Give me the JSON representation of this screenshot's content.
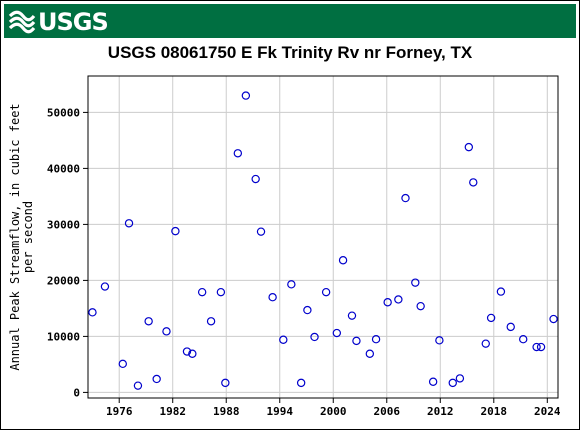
{
  "header": {
    "logo_text": "USGS",
    "colors": {
      "banner": "#006f41",
      "logo": "#ffffff"
    },
    "logo_icon": "usgs-wave-icon"
  },
  "chart_data": {
    "type": "scatter",
    "title": "USGS 08061750 E Fk Trinity Rv nr Forney, TX",
    "ylabel_lines": [
      "Annual Peak Streamflow, in cubic feet",
      "per second"
    ],
    "xlim": [
      1972.5,
      2025.2
    ],
    "ylim": [
      -1000,
      56500
    ],
    "xticks": [
      1976,
      1982,
      1988,
      1994,
      2000,
      2006,
      2012,
      2018,
      2024
    ],
    "yticks": [
      0,
      10000,
      20000,
      30000,
      40000,
      50000
    ],
    "grid": true,
    "marker_color": "#0000cc",
    "points": [
      [
        1973,
        14300
      ],
      [
        1974.4,
        18900
      ],
      [
        1976.4,
        5100
      ],
      [
        1977.1,
        30200
      ],
      [
        1978.1,
        1200
      ],
      [
        1979.3,
        12700
      ],
      [
        1980.2,
        2400
      ],
      [
        1981.3,
        10900
      ],
      [
        1982.3,
        28800
      ],
      [
        1983.6,
        7300
      ],
      [
        1984.2,
        6900
      ],
      [
        1985.3,
        17900
      ],
      [
        1986.3,
        12700
      ],
      [
        1987.4,
        17900
      ],
      [
        1987.9,
        1700
      ],
      [
        1989.3,
        42700
      ],
      [
        1990.2,
        53000
      ],
      [
        1991.3,
        38100
      ],
      [
        1991.9,
        28700
      ],
      [
        1993.2,
        17000
      ],
      [
        1994.4,
        9400
      ],
      [
        1995.3,
        19300
      ],
      [
        1996.4,
        1700
      ],
      [
        1997.1,
        14700
      ],
      [
        1997.9,
        9900
      ],
      [
        1999.2,
        17900
      ],
      [
        2000.4,
        10600
      ],
      [
        2001.1,
        23600
      ],
      [
        2002.1,
        13700
      ],
      [
        2002.6,
        9200
      ],
      [
        2004.1,
        6900
      ],
      [
        2004.8,
        9500
      ],
      [
        2006.1,
        16100
      ],
      [
        2007.3,
        16600
      ],
      [
        2008.1,
        34700
      ],
      [
        2009.2,
        19600
      ],
      [
        2009.8,
        15400
      ],
      [
        2011.2,
        1900
      ],
      [
        2011.9,
        9300
      ],
      [
        2013.4,
        1700
      ],
      [
        2014.2,
        2500
      ],
      [
        2015.2,
        43800
      ],
      [
        2015.7,
        37500
      ],
      [
        2017.1,
        8700
      ],
      [
        2017.7,
        13300
      ],
      [
        2018.8,
        18000
      ],
      [
        2019.9,
        11700
      ],
      [
        2021.3,
        9500
      ],
      [
        2022.8,
        8100
      ],
      [
        2023.3,
        8100
      ],
      [
        2024.7,
        13100
      ]
    ]
  }
}
